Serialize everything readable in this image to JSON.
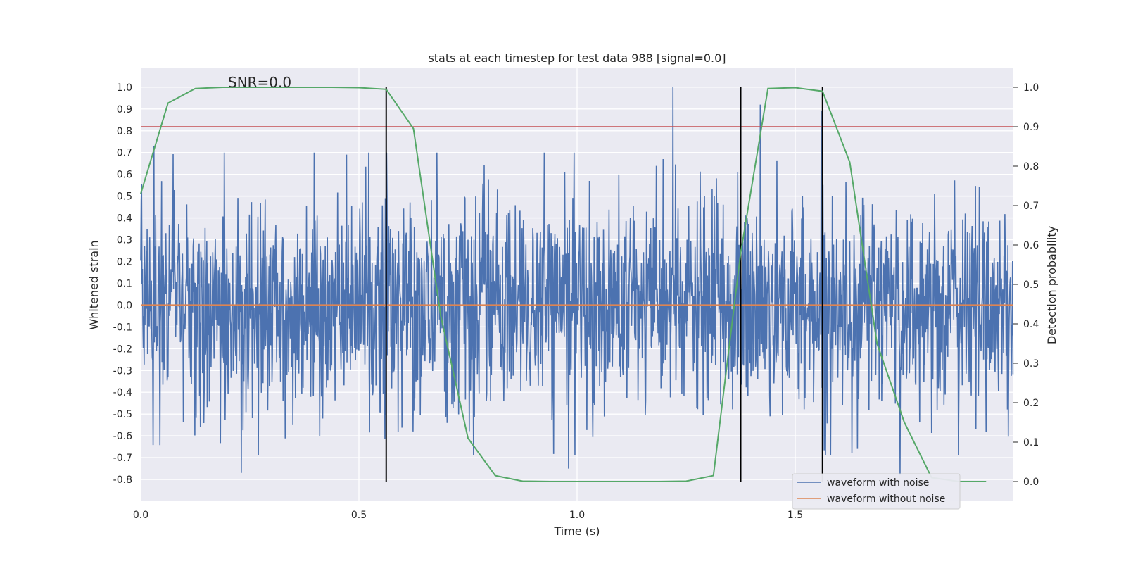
{
  "chart_data": {
    "type": "line",
    "title": "stats at each timestep for test data 988 [signal=0.0]",
    "xlabel": "Time (s)",
    "ylabel": "Whitened strain",
    "ylabel_right": "Detection probability",
    "xlim": [
      0.0,
      2.0
    ],
    "ylim": [
      -0.9,
      1.09
    ],
    "ylim_right": [
      -0.05,
      1.05
    ],
    "xticks": [
      "0.0",
      "0.5",
      "1.0",
      "1.5"
    ],
    "yticks": [
      "-0.8",
      "-0.7",
      "-0.6",
      "-0.5",
      "-0.4",
      "-0.3",
      "-0.2",
      "-0.1",
      "0.0",
      "0.1",
      "0.2",
      "0.3",
      "0.4",
      "0.5",
      "0.6",
      "0.7",
      "0.8",
      "0.9",
      "1.0"
    ],
    "yticks_right": [
      "0.0",
      "0.1",
      "0.2",
      "0.3",
      "0.4",
      "0.5",
      "0.6",
      "0.7",
      "0.8",
      "0.9",
      "1.0"
    ],
    "annotation": "SNR=0.0",
    "grid": true,
    "legend_placement": "lower-right",
    "series": [
      {
        "name": "waveform with noise",
        "color": "#4c72b0",
        "axis": "left",
        "sample_rate": 1024,
        "amplitude_range": [
          -0.77,
          1.0
        ],
        "description_peaks": [
          [
            0.03,
            0.73
          ],
          [
            1.22,
            1.0
          ],
          [
            1.42,
            0.92
          ],
          [
            1.56,
            0.89
          ],
          [
            0.23,
            -0.77
          ],
          [
            0.98,
            -0.75
          ],
          [
            1.74,
            -0.78
          ]
        ]
      },
      {
        "name": "waveform without noise",
        "color": "#dd8452",
        "axis": "left",
        "x": [
          0.0,
          2.0
        ],
        "y": [
          0.0,
          0.0
        ]
      },
      {
        "name": "",
        "color": "#55a868",
        "axis": "right",
        "x": [
          0.0,
          0.0625,
          0.125,
          0.1875,
          0.25,
          0.3125,
          0.375,
          0.4375,
          0.5,
          0.5625,
          0.625,
          0.6875,
          0.75,
          0.8125,
          0.875,
          0.9375,
          1.0,
          1.0625,
          1.125,
          1.1875,
          1.25,
          1.3125,
          1.375,
          1.4375,
          1.5,
          1.5625,
          1.625,
          1.6875,
          1.75,
          1.8125,
          1.875,
          1.9375
        ],
        "y": [
          0.73,
          0.96,
          0.997,
          1.0,
          1.0,
          1.0,
          1.0,
          1.0,
          0.999,
          0.995,
          0.895,
          0.42,
          0.11,
          0.015,
          0.001,
          0.0,
          0.0,
          0.0,
          0.0,
          0.0,
          0.001,
          0.015,
          0.58,
          0.997,
          0.999,
          0.99,
          0.81,
          0.35,
          0.15,
          0.01,
          0.0,
          0.0
        ]
      }
    ],
    "threshold": {
      "axis": "right",
      "y": 0.9,
      "color": "#c44e52"
    },
    "vlines": {
      "x": [
        0.5625,
        1.375,
        1.5625
      ],
      "y_range": [
        0.0,
        1.0
      ],
      "axis": "right",
      "color": "#000000"
    }
  }
}
